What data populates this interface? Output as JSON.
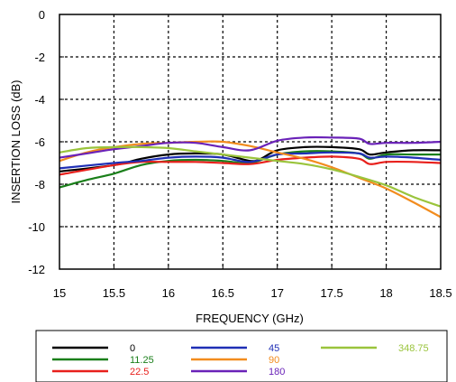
{
  "chart_data": {
    "type": "line",
    "title": "",
    "xlabel": "FREQUENCY (GHz)",
    "ylabel": "INSERTION LOSS  (dB)",
    "xlim": [
      15,
      18.5
    ],
    "ylim": [
      -12,
      0
    ],
    "xticks": [
      "15",
      "15.5",
      "16",
      "16.5",
      "17",
      "17.5",
      "18",
      "18.5"
    ],
    "yticks": [
      "0",
      "-2",
      "-4",
      "-6",
      "-8",
      "-10",
      "-12"
    ],
    "grid": true,
    "legend_position": "bottom",
    "series": [
      {
        "name": "0",
        "color": "#000000",
        "x": [
          15,
          15.5,
          15.75,
          16,
          16.25,
          16.5,
          16.75,
          16.85,
          17,
          17.25,
          17.5,
          17.75,
          17.85,
          18,
          18.25,
          18.5
        ],
        "y": [
          -7.4,
          -7.1,
          -6.8,
          -6.6,
          -6.55,
          -6.6,
          -6.9,
          -6.8,
          -6.4,
          -6.25,
          -6.25,
          -6.35,
          -6.6,
          -6.5,
          -6.4,
          -6.4
        ]
      },
      {
        "name": "11.25",
        "color": "#1a7f1a",
        "x": [
          15,
          15.25,
          15.5,
          15.75,
          16,
          16.25,
          16.5,
          16.75,
          17,
          17.25,
          17.5,
          17.75,
          17.85,
          18,
          18.25,
          18.5
        ],
        "y": [
          -8.15,
          -7.8,
          -7.5,
          -7.1,
          -6.9,
          -6.85,
          -6.9,
          -7.0,
          -6.6,
          -6.45,
          -6.45,
          -6.55,
          -6.8,
          -6.6,
          -6.6,
          -6.6
        ]
      },
      {
        "name": "22.5",
        "color": "#e8201c",
        "x": [
          15,
          15.5,
          15.75,
          16,
          16.25,
          16.5,
          16.75,
          17,
          17.25,
          17.5,
          17.75,
          17.85,
          18,
          18.25,
          18.5
        ],
        "y": [
          -7.55,
          -7.1,
          -6.95,
          -6.95,
          -6.95,
          -7.0,
          -7.05,
          -6.85,
          -6.75,
          -6.7,
          -6.8,
          -7.05,
          -6.95,
          -6.95,
          -7.0
        ]
      },
      {
        "name": "45",
        "color": "#1f2fb5",
        "x": [
          15,
          15.5,
          15.75,
          16,
          16.25,
          16.5,
          16.75,
          17,
          17.25,
          17.5,
          17.75,
          17.85,
          18,
          18.25,
          18.5
        ],
        "y": [
          -7.25,
          -7.0,
          -6.9,
          -6.75,
          -6.7,
          -6.75,
          -6.95,
          -6.6,
          -6.55,
          -6.5,
          -6.55,
          -6.75,
          -6.7,
          -6.75,
          -6.85
        ]
      },
      {
        "name": "90",
        "color": "#f28c1e",
        "x": [
          15,
          15.25,
          15.5,
          15.75,
          16,
          16.25,
          16.5,
          16.75,
          17,
          17.25,
          17.5,
          17.75,
          18,
          18.25,
          18.5
        ],
        "y": [
          -6.9,
          -6.5,
          -6.25,
          -6.1,
          -6.05,
          -6.0,
          -6.0,
          -6.2,
          -6.5,
          -6.8,
          -7.2,
          -7.7,
          -8.2,
          -8.85,
          -9.55
        ]
      },
      {
        "name": "180",
        "color": "#6a22b8",
        "x": [
          15,
          15.25,
          15.5,
          15.75,
          16,
          16.25,
          16.5,
          16.75,
          17,
          17.25,
          17.5,
          17.75,
          17.85,
          18,
          18.25,
          18.5
        ],
        "y": [
          -6.75,
          -6.55,
          -6.35,
          -6.2,
          -6.05,
          -6.05,
          -6.25,
          -6.4,
          -5.95,
          -5.8,
          -5.8,
          -5.85,
          -6.1,
          -6.05,
          -6.05,
          -6.0
        ]
      },
      {
        "name": "348.75",
        "color": "#9ac43c",
        "x": [
          15,
          15.25,
          15.5,
          15.75,
          16,
          16.25,
          16.5,
          16.75,
          17,
          17.25,
          17.5,
          17.75,
          18,
          18.25,
          18.5
        ],
        "y": [
          -6.5,
          -6.3,
          -6.25,
          -6.25,
          -6.3,
          -6.45,
          -6.6,
          -6.75,
          -6.9,
          -7.05,
          -7.3,
          -7.65,
          -8.05,
          -8.6,
          -9.05
        ]
      }
    ]
  }
}
